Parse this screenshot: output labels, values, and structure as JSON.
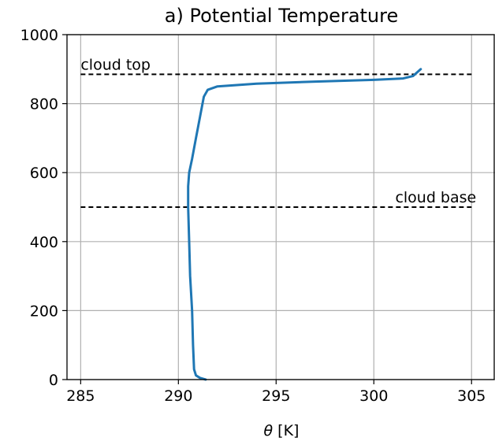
{
  "chart_data": {
    "type": "line",
    "title": "a) Potential Temperature",
    "xlabel_symbol": "θ",
    "xlabel_unit": " [K]",
    "ylabel": "",
    "xlim": [
      284.3,
      306.2
    ],
    "ylim": [
      0,
      1000
    ],
    "xticks": [
      285,
      290,
      295,
      300,
      305
    ],
    "yticks": [
      0,
      200,
      400,
      600,
      800,
      1000
    ],
    "grid": true,
    "series": [
      {
        "color": "#1f77b4",
        "points": [
          [
            291.4,
            0
          ],
          [
            291.1,
            5
          ],
          [
            290.9,
            12
          ],
          [
            290.8,
            30
          ],
          [
            290.75,
            100
          ],
          [
            290.7,
            200
          ],
          [
            290.6,
            300
          ],
          [
            290.55,
            400
          ],
          [
            290.5,
            500
          ],
          [
            290.5,
            560
          ],
          [
            290.55,
            600
          ],
          [
            290.7,
            640
          ],
          [
            290.9,
            700
          ],
          [
            291.1,
            760
          ],
          [
            291.3,
            820
          ],
          [
            291.5,
            840
          ],
          [
            292.0,
            850
          ],
          [
            294.0,
            858
          ],
          [
            297.0,
            864
          ],
          [
            300.0,
            869
          ],
          [
            301.5,
            873
          ],
          [
            302.0,
            880
          ],
          [
            302.4,
            900
          ]
        ]
      }
    ],
    "hlines": [
      {
        "y": 885,
        "x_from": 285,
        "x_to": 305,
        "style": "dashed",
        "color": "#000000",
        "label": "cloud top",
        "label_anchor": "start"
      },
      {
        "y": 500,
        "x_from": 285,
        "x_to": 305,
        "style": "dashed",
        "color": "#000000",
        "label": "cloud base",
        "label_anchor": "end"
      }
    ]
  }
}
